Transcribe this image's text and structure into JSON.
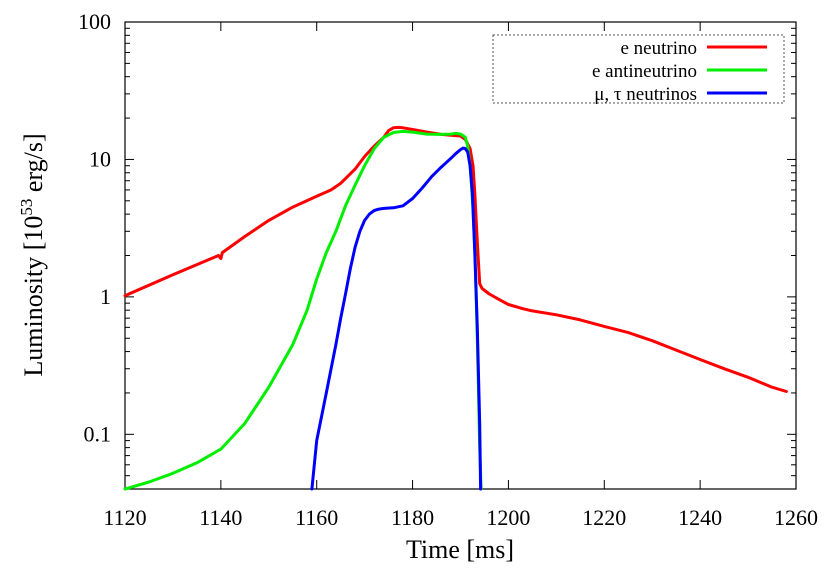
{
  "chart_data": {
    "type": "line",
    "xlabel": "Time [ms]",
    "ylabel_main": "Luminosity [10",
    "ylabel_sup": "53",
    "ylabel_unit": " erg/s]",
    "xlim": [
      1120,
      1260
    ],
    "ylim": [
      0.04,
      100
    ],
    "yscale": "log",
    "xticks": [
      1120,
      1140,
      1160,
      1180,
      1200,
      1220,
      1240,
      1260
    ],
    "yticks": [
      {
        "value": 0.1,
        "label": "0.1"
      },
      {
        "value": 1,
        "label": "1"
      },
      {
        "value": 10,
        "label": "10"
      },
      {
        "value": 100,
        "label": "100"
      }
    ],
    "grid": false,
    "legend_position": "top-right",
    "series": [
      {
        "name": "e neutrino",
        "color": "#ff0000",
        "x": [
          1120,
          1130,
          1139.5,
          1140,
          1140.3,
          1145,
          1150,
          1155,
          1160,
          1163,
          1165,
          1168,
          1170,
          1172,
          1174,
          1175,
          1176,
          1177,
          1178,
          1180,
          1183,
          1186,
          1188,
          1190,
          1191,
          1192,
          1192.6,
          1193,
          1193.5,
          1194,
          1194.5,
          1196,
          1198,
          1200,
          1203,
          1205,
          1210,
          1215,
          1220,
          1225,
          1230,
          1235,
          1240,
          1245,
          1250,
          1255,
          1258
        ],
        "y": [
          1.02,
          1.45,
          2.0,
          1.9,
          2.1,
          2.75,
          3.6,
          4.5,
          5.4,
          6.0,
          6.7,
          8.5,
          10.5,
          12.5,
          14.5,
          16.2,
          17.0,
          17.1,
          17.0,
          16.5,
          15.8,
          15.2,
          15.0,
          14.8,
          14.0,
          12.0,
          9.0,
          5.5,
          2.5,
          1.25,
          1.15,
          1.05,
          0.96,
          0.88,
          0.82,
          0.79,
          0.74,
          0.68,
          0.61,
          0.55,
          0.48,
          0.41,
          0.35,
          0.3,
          0.26,
          0.22,
          0.205
        ]
      },
      {
        "name": "e antineutrino",
        "color": "#00ee00",
        "x": [
          1120,
          1125,
          1130,
          1135,
          1140,
          1145,
          1150,
          1155,
          1158,
          1160,
          1162,
          1164,
          1166,
          1168,
          1170,
          1172,
          1174,
          1176,
          1178,
          1180,
          1183,
          1186,
          1188,
          1189,
          1190,
          1191,
          1191.5,
          1192,
          1192.5,
          1193,
          1193.5,
          1194,
          1194.3
        ],
        "y": [
          0.04,
          0.045,
          0.052,
          0.062,
          0.078,
          0.12,
          0.22,
          0.45,
          0.8,
          1.35,
          2.1,
          3.0,
          4.6,
          6.5,
          9.0,
          12.0,
          14.5,
          15.7,
          16.0,
          15.8,
          15.3,
          15.2,
          15.3,
          15.5,
          15.3,
          14.5,
          12.5,
          9.0,
          5.0,
          2.2,
          0.5,
          0.08,
          0.04
        ]
      },
      {
        "name": "μ, τ neutrinos",
        "color": "#0000ff",
        "x": [
          1159,
          1160,
          1162,
          1164,
          1165,
          1166,
          1167,
          1168,
          1169,
          1170,
          1171,
          1172,
          1173,
          1174,
          1176,
          1178,
          1180,
          1182,
          1184,
          1186,
          1188,
          1189,
          1190,
          1190.5,
          1191,
          1191.5,
          1192,
          1192.5,
          1193,
          1193.5,
          1194,
          1194.2
        ],
        "y": [
          0.04,
          0.09,
          0.2,
          0.45,
          0.7,
          1.05,
          1.6,
          2.3,
          3.0,
          3.6,
          4.0,
          4.25,
          4.35,
          4.4,
          4.45,
          4.6,
          5.2,
          6.2,
          7.5,
          8.8,
          10.2,
          11.0,
          11.8,
          12.1,
          12.0,
          11.3,
          9.0,
          5.5,
          2.0,
          0.6,
          0.12,
          0.04
        ]
      }
    ]
  }
}
